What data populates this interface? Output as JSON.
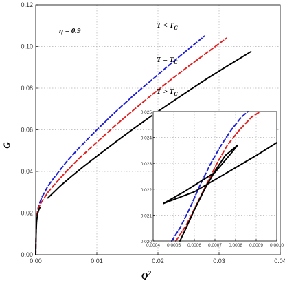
{
  "chart_data": {
    "type": "line",
    "xlabel": "Q",
    "xlabel_sup": "2",
    "ylabel": "G",
    "xlim": [
      0,
      0.04
    ],
    "ylim": [
      0,
      0.12
    ],
    "x_ticks": [
      "0.00",
      "0.01",
      "0.02",
      "0.03",
      "0.04"
    ],
    "y_ticks": [
      "0.00",
      "0.02",
      "0.04",
      "0.06",
      "0.08",
      "0.10",
      "0.12"
    ],
    "grid": true,
    "annotations": {
      "eta": "η = 0.9",
      "low": {
        "prefix": "T < T",
        "sub": "C"
      },
      "eq": {
        "prefix": "T = T",
        "sub": "C"
      },
      "high": {
        "prefix": "T > T",
        "sub": "C"
      }
    },
    "series": [
      {
        "color": "#1f1fd6",
        "dash": true,
        "x": [
          0,
          5e-05,
          0.0001,
          0.0002,
          0.0004,
          0.0007,
          0.001,
          0.002,
          0.003,
          0.005,
          0.007,
          0.01,
          0.013,
          0.016,
          0.019,
          0.022,
          0.025,
          0.0276
        ],
        "y": [
          0,
          0.009,
          0.0145,
          0.019,
          0.0225,
          0.0252,
          0.0275,
          0.033,
          0.037,
          0.0445,
          0.051,
          0.06,
          0.0685,
          0.0765,
          0.084,
          0.0915,
          0.0988,
          0.105
        ]
      },
      {
        "color": "#e02020",
        "dash": true,
        "x": [
          0,
          5e-05,
          0.0001,
          0.0002,
          0.0004,
          0.0007,
          0.001,
          0.002,
          0.003,
          0.005,
          0.007,
          0.01,
          0.013,
          0.016,
          0.019,
          0.022,
          0.025,
          0.028,
          0.0312
        ],
        "y": [
          0,
          0.009,
          0.0145,
          0.019,
          0.0222,
          0.024,
          0.0255,
          0.03,
          0.0335,
          0.04,
          0.046,
          0.054,
          0.062,
          0.0695,
          0.0768,
          0.0838,
          0.0905,
          0.097,
          0.104
        ]
      },
      {
        "color": "#000000",
        "dash": false,
        "x": [
          0,
          3e-05,
          7e-05,
          0.00015,
          0.0003,
          0.0005,
          0.0007
        ],
        "y": [
          0,
          0.006,
          0.011,
          0.016,
          0.0195,
          0.0215,
          0.0228
        ]
      },
      {
        "color": "#000000",
        "dash": false,
        "x": [
          0.002,
          0.004,
          0.006,
          0.008,
          0.01,
          0.013,
          0.016,
          0.019,
          0.022,
          0.025,
          0.028,
          0.031,
          0.0352
        ],
        "y": [
          0.0273,
          0.033,
          0.038,
          0.0428,
          0.0473,
          0.054,
          0.0605,
          0.0668,
          0.0728,
          0.0787,
          0.0845,
          0.09,
          0.0975
        ]
      }
    ],
    "inset": {
      "xlim": [
        0.0004,
        0.001
      ],
      "ylim": [
        0.02,
        0.025
      ],
      "x_ticks": [
        "0.0004",
        "0.0005",
        "0.0006",
        "0.0007",
        "0.0008",
        "0.0009",
        "0.0010"
      ],
      "y_ticks": [
        "0.020",
        "0.021",
        "0.022",
        "0.023",
        "0.024",
        "0.025"
      ],
      "series": [
        {
          "color": "#1f1fd6",
          "dash": true,
          "x": [
            0.00049,
            0.00053,
            0.00058,
            0.00063,
            0.00068,
            0.00073,
            0.00078,
            0.00083,
            0.00086
          ],
          "y": [
            0.02,
            0.0205,
            0.0213,
            0.0222,
            0.023,
            0.0237,
            0.0243,
            0.0248,
            0.025
          ]
        },
        {
          "color": "#e02020",
          "dash": true,
          "x": [
            0.00051,
            0.00056,
            0.00061,
            0.00066,
            0.00071,
            0.00076,
            0.00082,
            0.00088,
            0.00092
          ],
          "y": [
            0.02,
            0.0206,
            0.0214,
            0.0222,
            0.023,
            0.0237,
            0.0243,
            0.0248,
            0.025
          ]
        },
        {
          "color": "#000000",
          "dash": false,
          "x": [
            0.00053,
            0.00056,
            0.0006,
            0.00065,
            0.0007,
            0.00075,
            0.00081
          ],
          "y": [
            0.02,
            0.0205,
            0.0212,
            0.022,
            0.0227,
            0.0233,
            0.0237
          ]
        },
        {
          "color": "#000000",
          "dash": false,
          "x": [
            0.00045,
            0.0006,
            0.00075,
            0.0009,
            0.001
          ],
          "y": [
            0.02145,
            0.0219,
            0.0226,
            0.0233,
            0.0238
          ]
        },
        {
          "color": "#000000",
          "dash": false,
          "x": [
            0.00045,
            0.00055,
            0.00062,
            0.0007,
            0.00078,
            0.00081
          ],
          "y": [
            0.02145,
            0.0219,
            0.02225,
            0.02265,
            0.0234,
            0.0237
          ]
        }
      ]
    }
  }
}
